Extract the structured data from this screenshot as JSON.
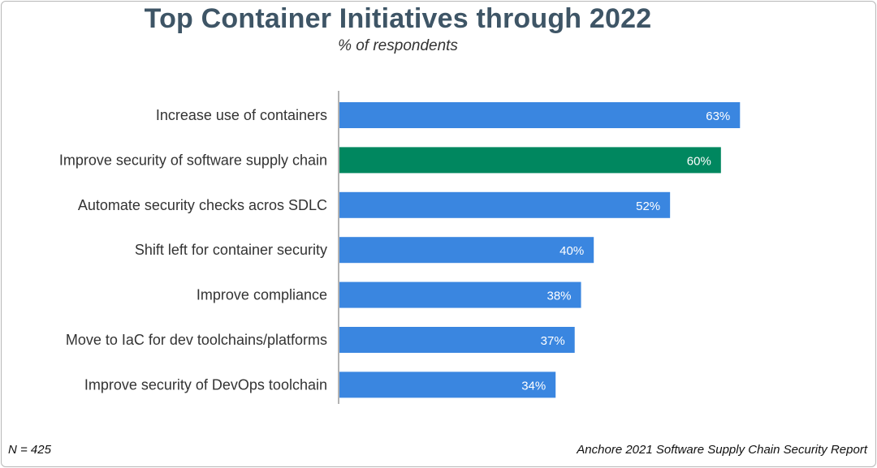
{
  "chart_data": {
    "type": "bar",
    "orientation": "horizontal",
    "title": "Top Container Initiatives through 2022",
    "subtitle": "% of respondents",
    "categories": [
      "Increase use of containers",
      "Improve security of software supply chain",
      "Automate security checks acros SDLC",
      "Shift left for container security",
      "Improve compliance",
      "Move to IaC for dev toolchains/platforms",
      "Improve security of DevOps toolchain"
    ],
    "values": [
      63,
      60,
      52,
      40,
      38,
      37,
      34
    ],
    "value_labels": [
      "63%",
      "60%",
      "52%",
      "40%",
      "38%",
      "37%",
      "34%"
    ],
    "highlight_index": 1,
    "xlim": [
      0,
      100
    ],
    "xlabel": "",
    "ylabel": "",
    "grid": false,
    "legend": "none"
  },
  "colors": {
    "bar": "#3a86e0",
    "highlight": "#00875f",
    "axis": "#9a9a9a",
    "title": "#3e5566"
  },
  "footer": {
    "sample": "N = 425",
    "source": "Anchore 2021 Software Supply Chain Security Report"
  }
}
